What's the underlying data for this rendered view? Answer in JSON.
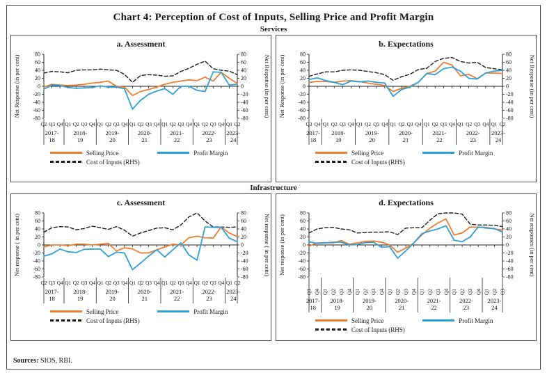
{
  "page": {
    "title": "Chart 4: Perception of Cost of Inputs, Selling Price and Profit Margin",
    "section_top": "Services",
    "section_bottom": "Infrastructure",
    "sources_label": "Sources:",
    "sources_text": " SIOS, RBI."
  },
  "legend": {
    "selling_price": "Selling Price",
    "profit_margin": "Profit Margin",
    "cost_of_inputs": "Cost of Inputs (RHS)"
  },
  "colors": {
    "selling_price": "#ED7D31",
    "profit_margin": "#2BA0D9",
    "cost_of_inputs": "#1a1a1a"
  },
  "axis": {
    "yticks": [
      80,
      60,
      40,
      20,
      0,
      -20,
      -40,
      -60,
      -80
    ],
    "ylim": [
      -80,
      80
    ]
  },
  "chart_data": [
    {
      "type": "line",
      "title": "a. Assessment",
      "ylabel_left": "Net Response (in per cent)",
      "ylabel_right": "Net Response (in per cent)",
      "ylim": [
        -80,
        80
      ],
      "grid": false,
      "legend_position": "below",
      "rotated_x_labels": false,
      "years": [
        "2017-18",
        "2018-19",
        "2019-20",
        "2020-21",
        "2021-22",
        "2022-23",
        "2023-24"
      ],
      "group_sizes": [
        3,
        4,
        4,
        4,
        4,
        4,
        2
      ],
      "quarters": [
        "Q2",
        "Q3",
        "Q4",
        "Q1",
        "Q2",
        "Q3",
        "Q4",
        "Q1",
        "Q2",
        "Q3",
        "Q4",
        "Q1",
        "Q2",
        "Q3",
        "Q4",
        "Q1",
        "Q2",
        "Q3",
        "Q4",
        "Q1",
        "Q2",
        "Q3",
        "Q4",
        "Q1",
        "Q2"
      ],
      "series": [
        {
          "name": "Cost of Inputs (RHS)",
          "key": "cost_of_inputs",
          "axis": "right",
          "dashed": true,
          "values": [
            33,
            37,
            36,
            34,
            40,
            41,
            41,
            43,
            41,
            40,
            30,
            10,
            27,
            29,
            28,
            25,
            26,
            37,
            45,
            55,
            63,
            44,
            40,
            38,
            29
          ]
        },
        {
          "name": "Selling Price",
          "key": "selling_price",
          "axis": "left",
          "dashed": false,
          "values": [
            -2,
            5,
            3,
            2,
            3,
            5,
            8,
            10,
            13,
            0,
            -2,
            -23,
            -13,
            -8,
            -2,
            5,
            10,
            13,
            16,
            14,
            23,
            13,
            35,
            20,
            7
          ]
        },
        {
          "name": "Profit Margin",
          "key": "profit_margin",
          "axis": "left",
          "dashed": false,
          "values": [
            -7,
            3,
            2,
            -3,
            -5,
            -4,
            -3,
            1,
            -2,
            -2,
            -6,
            -57,
            -35,
            -20,
            -12,
            -6,
            -20,
            0,
            0,
            -10,
            -13,
            36,
            35,
            3,
            5
          ]
        }
      ]
    },
    {
      "type": "line",
      "title": "b. Expectations",
      "ylabel_left": "Net Response (in per cent)",
      "ylabel_right": "Net Response (in per cent)",
      "ylim": [
        -80,
        80
      ],
      "grid": false,
      "legend_position": "below",
      "rotated_x_labels": false,
      "years": [
        "2017-18",
        "2018-19",
        "2019-20",
        "2020-21",
        "2021-22",
        "2022-23",
        "2023-24"
      ],
      "group_sizes": [
        2,
        4,
        4,
        4,
        4,
        4,
        2
      ],
      "quarters": [
        "Q3",
        "Q4",
        "Q1",
        "Q2",
        "Q3",
        "Q4",
        "Q1",
        "Q2",
        "Q3",
        "Q4",
        "Q1",
        "Q2",
        "Q3",
        "Q4",
        "Q1",
        "Q2",
        "Q3",
        "Q4",
        "Q1",
        "Q2",
        "Q3",
        "Q4",
        "Q1",
        "Q2"
      ],
      "series": [
        {
          "name": "Cost of Inputs (RHS)",
          "key": "cost_of_inputs",
          "axis": "right",
          "dashed": true,
          "values": [
            25,
            31,
            36,
            36,
            40,
            41,
            40,
            37,
            34,
            29,
            15,
            24,
            30,
            42,
            45,
            62,
            70,
            72,
            62,
            58,
            60,
            47,
            44,
            41
          ]
        },
        {
          "name": "Selling Price",
          "key": "selling_price",
          "axis": "left",
          "dashed": false,
          "values": [
            10,
            12,
            12,
            10,
            13,
            14,
            12,
            8,
            5,
            2,
            -13,
            -5,
            0,
            10,
            32,
            38,
            60,
            53,
            26,
            30,
            19,
            33,
            33,
            32
          ]
        },
        {
          "name": "Profit Margin",
          "key": "profit_margin",
          "axis": "left",
          "dashed": false,
          "values": [
            17,
            21,
            14,
            10,
            4,
            13,
            11,
            13,
            10,
            8,
            -25,
            -8,
            -2,
            10,
            32,
            29,
            44,
            48,
            38,
            20,
            18,
            33,
            38,
            40
          ]
        }
      ]
    },
    {
      "type": "line",
      "title": "c. Assessment",
      "ylabel_left": "Net response ( in per cent)",
      "ylabel_right": "Net response ( in per cent)",
      "ylim": [
        -80,
        80
      ],
      "grid": false,
      "legend_position": "below",
      "rotated_x_labels": false,
      "years": [
        "2017-18",
        "2018-19",
        "2019-20",
        "2020-21",
        "2021-22",
        "2022-23",
        "2023-24"
      ],
      "group_sizes": [
        3,
        4,
        4,
        4,
        4,
        4,
        2
      ],
      "quarters": [
        "Q2",
        "Q3",
        "Q4",
        "Q1",
        "Q2",
        "Q3",
        "Q4",
        "Q1",
        "Q2",
        "Q3",
        "Q4",
        "Q1",
        "Q2",
        "Q3",
        "Q4",
        "Q1",
        "Q2",
        "Q3",
        "Q4",
        "Q1",
        "Q2",
        "Q3",
        "Q4",
        "Q1",
        "Q2"
      ],
      "series": [
        {
          "name": "Cost of Inputs (RHS)",
          "key": "cost_of_inputs",
          "axis": "right",
          "dashed": true,
          "values": [
            32,
            43,
            46,
            45,
            38,
            41,
            47,
            43,
            39,
            46,
            37,
            22,
            30,
            36,
            42,
            43,
            38,
            50,
            70,
            80,
            60,
            45,
            45,
            44,
            45
          ]
        },
        {
          "name": "Selling Price",
          "key": "selling_price",
          "axis": "left",
          "dashed": false,
          "values": [
            -5,
            0,
            0,
            -2,
            2,
            2,
            0,
            2,
            4,
            -15,
            -7,
            -10,
            -20,
            -20,
            -12,
            -5,
            2,
            0,
            18,
            22,
            18,
            17,
            45,
            30,
            21
          ]
        },
        {
          "name": "Profit Margin",
          "key": "profit_margin",
          "axis": "left",
          "dashed": false,
          "values": [
            -28,
            -22,
            -10,
            -17,
            -19,
            -11,
            -10,
            -10,
            -29,
            -18,
            -20,
            -62,
            -45,
            -28,
            -12,
            -30,
            -12,
            5,
            -25,
            -38,
            45,
            44,
            44,
            17,
            8
          ]
        }
      ]
    },
    {
      "type": "line",
      "title": "d. Expectations",
      "ylabel_left": "Net response (in per cent)",
      "ylabel_right": "Net responses (in per cent)",
      "ylim": [
        -80,
        80
      ],
      "grid": false,
      "legend_position": "below",
      "rotated_x_labels": true,
      "years": [
        "2017-18",
        "2018-19",
        "2019-20",
        "2020-21",
        "2021-22",
        "2022-23",
        "2023-24"
      ],
      "group_sizes": [
        2,
        4,
        4,
        4,
        4,
        4,
        3
      ],
      "quarters": [
        "Q3",
        "Q4",
        "Q1",
        "Q2",
        "Q3",
        "Q4",
        "Q1",
        "Q2",
        "Q3",
        "Q4",
        "Q1",
        "Q2",
        "Q3",
        "Q4",
        "Q1",
        "Q2",
        "Q3",
        "Q4",
        "Q1",
        "Q2",
        "Q3",
        "Q4",
        "Q1",
        "Q2",
        "Q3"
      ],
      "series": [
        {
          "name": "Cost of Inputs (RHS)",
          "key": "cost_of_inputs",
          "axis": "right",
          "dashed": true,
          "values": [
            30,
            40,
            43,
            44,
            40,
            38,
            30,
            31,
            32,
            32,
            33,
            26,
            42,
            43,
            43,
            62,
            78,
            80,
            80,
            77,
            52,
            50,
            50,
            49,
            46
          ]
        },
        {
          "name": "Selling Price",
          "key": "selling_price",
          "axis": "left",
          "dashed": false,
          "values": [
            -3,
            5,
            6,
            5,
            11,
            2,
            5,
            9,
            10,
            7,
            0,
            -18,
            -8,
            5,
            25,
            42,
            55,
            65,
            25,
            30,
            45,
            44,
            44,
            40,
            37
          ]
        },
        {
          "name": "Profit Margin",
          "key": "profit_margin",
          "axis": "left",
          "dashed": false,
          "values": [
            8,
            4,
            5,
            7,
            7,
            0,
            1,
            6,
            7,
            -6,
            -4,
            -33,
            -15,
            5,
            28,
            35,
            40,
            48,
            12,
            8,
            20,
            45,
            42,
            41,
            32
          ]
        }
      ]
    }
  ]
}
